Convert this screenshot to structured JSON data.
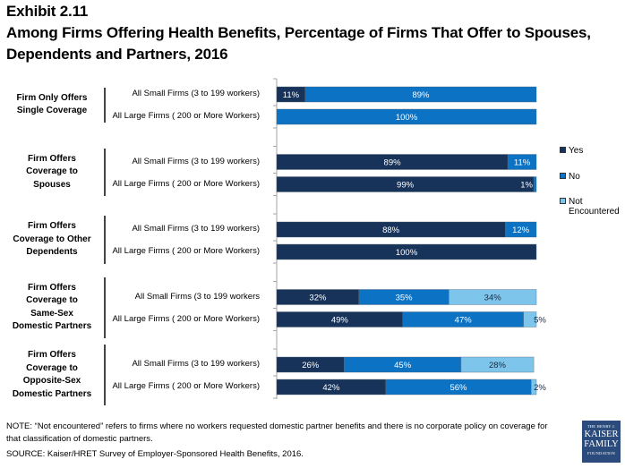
{
  "header": {
    "exhibit": "Exhibit 2.11",
    "title": "Among Firms Offering Health Benefits, Percentage of Firms That Offer to Spouses, Dependents and Partners, 2016"
  },
  "colors": {
    "yes": "#17335a",
    "no": "#0b72c4",
    "not_encountered": "#7ec5ec"
  },
  "chart_data": {
    "type": "bar",
    "orientation": "horizontal",
    "stacked": true,
    "title": "Among Firms Offering Health Benefits, Percentage of Firms That Offer to Spouses, Dependents and Partners, 2016",
    "xlabel": "",
    "ylabel": "",
    "xlim": [
      0,
      100
    ],
    "grid": false,
    "legend_position": "right",
    "legend": [
      "Yes",
      "No",
      "Not Encountered"
    ],
    "groups": [
      {
        "label": "Firm Only Offers Single Coverage",
        "label_lines": [
          "Firm Only Offers",
          "Single Coverage"
        ],
        "rows": [
          {
            "label": "All Small Firms (3 to 199 workers)",
            "values": {
              "Yes": 11,
              "No": 89,
              "Not Encountered": 0
            },
            "labels": {
              "Yes": "11%",
              "No": "89%",
              "Not Encountered": ""
            }
          },
          {
            "label": "All Large Firms ( 200 or More Workers)",
            "values": {
              "Yes": 0,
              "No": 100,
              "Not Encountered": 0
            },
            "labels": {
              "Yes": "",
              "No": "100%",
              "Not Encountered": ""
            }
          }
        ]
      },
      {
        "label": "Firm Offers Coverage to Spouses",
        "label_lines": [
          "Firm Offers",
          "Coverage to",
          "Spouses"
        ],
        "rows": [
          {
            "label": "All Small Firms (3 to 199 workers)",
            "values": {
              "Yes": 89,
              "No": 11,
              "Not Encountered": 0
            },
            "labels": {
              "Yes": "89%",
              "No": "11%",
              "Not Encountered": ""
            }
          },
          {
            "label": "All Large Firms ( 200 or More Workers)",
            "values": {
              "Yes": 99,
              "No": 1,
              "Not Encountered": 0
            },
            "labels": {
              "Yes": "99%",
              "No": "1%",
              "Not Encountered": ""
            }
          }
        ]
      },
      {
        "label": "Firm Offers Coverage to Other Dependents",
        "label_lines": [
          "Firm Offers",
          "Coverage to Other",
          "Dependents"
        ],
        "rows": [
          {
            "label": "All Small Firms (3 to 199 workers)",
            "values": {
              "Yes": 88,
              "No": 12,
              "Not Encountered": 0
            },
            "labels": {
              "Yes": "88%",
              "No": "12%",
              "Not Encountered": ""
            }
          },
          {
            "label": "All Large Firms ( 200 or More Workers)",
            "values": {
              "Yes": 100,
              "No": 0,
              "Not Encountered": 0
            },
            "labels": {
              "Yes": "100%",
              "No": "",
              "Not Encountered": ""
            }
          }
        ]
      },
      {
        "label": "Firm Offers Coverage to Same-Sex Domestic Partners",
        "label_lines": [
          "Firm Offers",
          "Coverage to",
          "Same-Sex",
          "Domestic Partners"
        ],
        "rows": [
          {
            "label": "All Small Firms (3 to 199 workers",
            "values": {
              "Yes": 32,
              "No": 35,
              "Not Encountered": 34
            },
            "labels": {
              "Yes": "32%",
              "No": "35%",
              "Not Encountered": "34%"
            }
          },
          {
            "label": "All Large Firms ( 200 or More Workers)",
            "values": {
              "Yes": 49,
              "No": 47,
              "Not Encountered": 5
            },
            "labels": {
              "Yes": "49%",
              "No": "47%",
              "Not Encountered": "5%"
            }
          }
        ]
      },
      {
        "label": "Firm Offers Coverage to Opposite-Sex Domestic Partners",
        "label_lines": [
          "Firm Offers",
          "Coverage to",
          "Opposite-Sex",
          "Domestic Partners"
        ],
        "rows": [
          {
            "label": "All Small Firms (3 to 199 workers)",
            "values": {
              "Yes": 26,
              "No": 45,
              "Not Encountered": 28
            },
            "labels": {
              "Yes": "26%",
              "No": "45%",
              "Not Encountered": "28%"
            }
          },
          {
            "label": "All Large Firms ( 200 or More Workers)",
            "values": {
              "Yes": 42,
              "No": 56,
              "Not Encountered": 2
            },
            "labels": {
              "Yes": "42%",
              "No": "56%",
              "Not Encountered": "2%"
            }
          }
        ]
      }
    ]
  },
  "legend": {
    "items": [
      {
        "label_lines": [
          "Yes"
        ],
        "key": "yes"
      },
      {
        "label_lines": [
          "No"
        ],
        "key": "no"
      },
      {
        "label_lines": [
          "Not",
          "Encountered"
        ],
        "key": "not_encountered"
      }
    ]
  },
  "footer": {
    "note_line1": "NOTE: “Not encountered” refers to firms where no workers requested domestic partner benefits and there is no corporate policy on coverage for",
    "note_line2": "that classification of domestic partners.",
    "source": "SOURCE: Kaiser/HRET Survey of Employer-Sponsored Health Benefits, 2016.",
    "logo_line1": "THE HENRY J.",
    "logo_line2": "KAISER",
    "logo_line3": "FAMILY",
    "logo_line4": "FOUNDATION"
  }
}
